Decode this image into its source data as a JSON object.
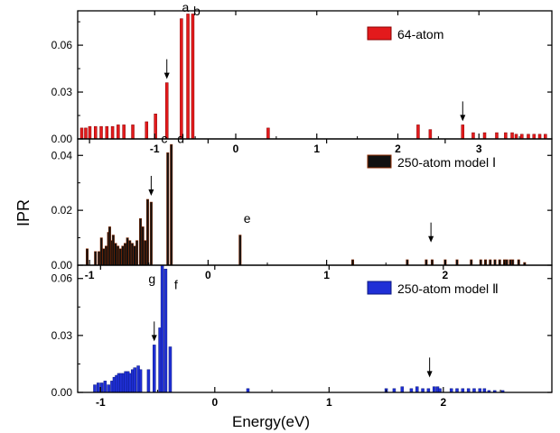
{
  "figure": {
    "ylabel": "IPR",
    "xlabel": "Energy(eV)"
  },
  "chart_data": [
    {
      "type": "bar",
      "name": "top-panel",
      "legend": "64-atom",
      "legend_position": "top-right",
      "color": "#e31a1c",
      "edge_color": "#8b0000",
      "xlim": [
        -1.95,
        3.9
      ],
      "ylim": [
        0,
        0.082
      ],
      "xticks": [
        -1,
        0,
        1,
        2,
        3
      ],
      "xtick_labels": [
        "-1",
        "0",
        "1",
        "2",
        "3"
      ],
      "yticks": [
        0.0,
        0.03,
        0.06
      ],
      "ytick_labels": [
        "0.00",
        "0.03",
        "0.06"
      ],
      "x": [
        -1.9,
        -1.85,
        -1.8,
        -1.73,
        -1.66,
        -1.59,
        -1.52,
        -1.45,
        -1.38,
        -1.27,
        -1.1,
        -0.99,
        -0.85,
        -0.67,
        -0.59,
        -0.53,
        0.4,
        2.25,
        2.4,
        2.8,
        2.93,
        3.07,
        3.22,
        3.33,
        3.41,
        3.46,
        3.53,
        3.61,
        3.68,
        3.75,
        3.82
      ],
      "values": [
        0.007,
        0.007,
        0.008,
        0.008,
        0.008,
        0.008,
        0.008,
        0.009,
        0.009,
        0.009,
        0.011,
        0.016,
        0.036,
        0.077,
        0.08,
        0.08,
        0.007,
        0.009,
        0.006,
        0.009,
        0.004,
        0.004,
        0.004,
        0.004,
        0.004,
        0.003,
        0.003,
        0.003,
        0.003,
        0.003,
        0.003
      ],
      "annotations": [
        {
          "label": "a",
          "x": -0.62,
          "y": 0.0815
        },
        {
          "label": "b",
          "x": -0.48,
          "y": 0.079
        },
        {
          "label": "arrow",
          "x": -0.85,
          "y": 0.036
        },
        {
          "label": "arrow",
          "x": 2.8,
          "y": 0.009
        }
      ]
    },
    {
      "type": "bar",
      "name": "middle-panel",
      "legend": "250-atom model Ⅰ",
      "legend_position": "top-right",
      "color": "#111111",
      "edge_color": "#8b2a00",
      "xlim": [
        -1.1,
        2.9
      ],
      "ylim": [
        0,
        0.046
      ],
      "xticks": [
        -1,
        0,
        1,
        2
      ],
      "xtick_labels": [
        "-1",
        "0",
        "1",
        "2"
      ],
      "yticks": [
        0.0,
        0.02,
        0.04
      ],
      "ytick_labels": [
        "0.00",
        "0.02",
        "0.04"
      ],
      "x": [
        -1.02,
        -0.95,
        -0.92,
        -0.9,
        -0.88,
        -0.86,
        -0.84,
        -0.83,
        -0.81,
        -0.8,
        -0.78,
        -0.76,
        -0.74,
        -0.72,
        -0.7,
        -0.68,
        -0.66,
        -0.64,
        -0.62,
        -0.6,
        -0.57,
        -0.55,
        -0.53,
        -0.51,
        -0.48,
        -0.34,
        -0.31,
        0.27,
        1.22,
        1.68,
        1.84,
        1.89,
        2.0,
        2.1,
        2.22,
        2.3,
        2.34,
        2.38,
        2.42,
        2.46,
        2.5,
        2.52,
        2.55,
        2.57,
        2.62,
        2.67
      ],
      "values": [
        0.006,
        0.005,
        0.005,
        0.01,
        0.006,
        0.007,
        0.012,
        0.014,
        0.009,
        0.011,
        0.008,
        0.007,
        0.006,
        0.007,
        0.008,
        0.01,
        0.009,
        0.008,
        0.007,
        0.009,
        0.017,
        0.014,
        0.009,
        0.024,
        0.023,
        0.041,
        0.044,
        0.011,
        0.002,
        0.002,
        0.002,
        0.002,
        0.002,
        0.002,
        0.002,
        0.002,
        0.002,
        0.002,
        0.002,
        0.002,
        0.002,
        0.002,
        0.002,
        0.002,
        0.002,
        0.001
      ],
      "annotations": [
        {
          "label": "c",
          "x": -0.37,
          "y": 0.0445
        },
        {
          "label": "d",
          "x": -0.23,
          "y": 0.0445
        },
        {
          "label": "e",
          "x": 0.33,
          "y": 0.0155
        },
        {
          "label": "arrow",
          "x": -0.48,
          "y": 0.024
        },
        {
          "label": "arrow",
          "x": 1.88,
          "y": 0.007
        }
      ]
    },
    {
      "type": "bar",
      "name": "bottom-panel",
      "legend": "250-atom model Ⅱ",
      "legend_position": "top-right",
      "color": "#1f2fd6",
      "edge_color": "#0c1a80",
      "xlim": [
        -1.2,
        2.95
      ],
      "ylim": [
        0,
        0.067
      ],
      "xticks": [
        -1,
        0,
        1,
        2
      ],
      "xtick_labels": [
        "-1",
        "0",
        "1",
        "2"
      ],
      "yticks": [
        0.0,
        0.03,
        0.06
      ],
      "ytick_labels": [
        "0.00",
        "0.03",
        "0.06"
      ],
      "x": [
        -1.05,
        -1.02,
        -0.99,
        -0.96,
        -0.93,
        -0.9,
        -0.88,
        -0.86,
        -0.84,
        -0.82,
        -0.8,
        -0.78,
        -0.76,
        -0.74,
        -0.72,
        -0.7,
        -0.67,
        -0.65,
        -0.58,
        -0.53,
        -0.48,
        -0.46,
        -0.43,
        -0.39,
        0.29,
        1.5,
        1.57,
        1.64,
        1.72,
        1.77,
        1.82,
        1.87,
        1.92,
        1.95,
        1.97,
        2.07,
        2.12,
        2.17,
        2.22,
        2.27,
        2.32,
        2.36,
        2.4,
        2.45,
        2.52
      ],
      "values": [
        0.004,
        0.005,
        0.005,
        0.006,
        0.004,
        0.006,
        0.008,
        0.009,
        0.01,
        0.01,
        0.01,
        0.011,
        0.011,
        0.01,
        0.012,
        0.013,
        0.014,
        0.012,
        0.012,
        0.025,
        0.034,
        0.067,
        0.065,
        0.024,
        0.002,
        0.002,
        0.002,
        0.003,
        0.002,
        0.003,
        0.002,
        0.002,
        0.003,
        0.003,
        0.002,
        0.002,
        0.002,
        0.002,
        0.002,
        0.002,
        0.002,
        0.002,
        0.001,
        0.001,
        0.001
      ],
      "annotations": [
        {
          "label": "g",
          "x": -0.55,
          "y": 0.0575
        },
        {
          "label": "f",
          "x": -0.34,
          "y": 0.0545
        },
        {
          "label": "arrow",
          "x": -0.53,
          "y": 0.025
        },
        {
          "label": "arrow",
          "x": 1.88,
          "y": 0.006
        }
      ]
    }
  ]
}
